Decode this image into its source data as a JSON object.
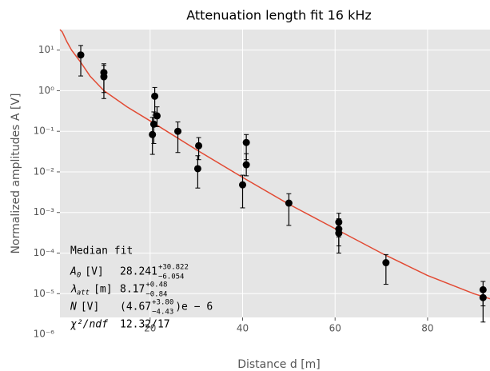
{
  "chart_data": {
    "type": "scatter",
    "title": "Attenuation length fit 16 kHz",
    "x_label": "Distance d [m]",
    "y_label": "Normalized amplitudes A [V]",
    "xlim": [
      0.5,
      93.5
    ],
    "xticks": [
      20,
      40,
      60,
      80
    ],
    "ylim": [
      2.6e-06,
      32
    ],
    "y_log": true,
    "grid": true,
    "yticks": [
      {
        "value": 1e-06,
        "label": "10⁻⁶"
      },
      {
        "value": 1e-05,
        "label": "10⁻⁵"
      },
      {
        "value": 0.0001,
        "label": "10⁻⁴"
      },
      {
        "value": 0.001,
        "label": "10⁻³"
      },
      {
        "value": 0.01,
        "label": "10⁻²"
      },
      {
        "value": 0.1,
        "label": "10⁻¹"
      },
      {
        "value": 1,
        "label": "10⁰"
      },
      {
        "value": 10,
        "label": "10¹"
      }
    ],
    "points": {
      "color": "#000000",
      "x": [
        5,
        10,
        10,
        20.5,
        20.8,
        21,
        21.5,
        26,
        30.5,
        30.3,
        40,
        40.8,
        40.8,
        50,
        60.8,
        60.8,
        60.8,
        71,
        92,
        92
      ],
      "values": [
        7.6,
        2.8,
        2.2,
        0.083,
        0.15,
        0.73,
        0.24,
        0.1,
        0.044,
        0.012,
        0.0048,
        0.053,
        0.015,
        0.0017,
        0.00058,
        0.00039,
        0.00031,
        5.8e-05,
        1.25e-05,
        8e-06
      ],
      "lower": [
        2.3,
        0.9,
        0.64,
        0.027,
        0.05,
        0.25,
        0.13,
        0.03,
        0.02,
        0.004,
        0.0013,
        0.02,
        0.008,
        0.00048,
        0.00025,
        0.00015,
        0.0001,
        1.7e-05,
        5e-06,
        2e-06
      ],
      "upper": [
        13,
        4.6,
        4.2,
        0.22,
        0.3,
        1.2,
        0.4,
        0.17,
        0.07,
        0.025,
        0.0083,
        0.083,
        0.028,
        0.0029,
        0.00096,
        0.0007,
        0.0005,
        9.2e-05,
        2e-05,
        1.3e-05
      ]
    },
    "fit": {
      "color": "#e24a33",
      "x": [
        0.5,
        1,
        2,
        3,
        5,
        7,
        10,
        15,
        20,
        30,
        40,
        50,
        60,
        70,
        80,
        90,
        93.5
      ],
      "values": [
        32,
        28,
        16,
        10,
        5,
        2.3,
        1.0,
        0.4,
        0.18,
        0.035,
        0.0073,
        0.0016,
        0.0004,
        0.0001,
        2.8e-05,
        1e-05,
        7.5e-06
      ]
    },
    "annotation": {
      "title": "Median fit",
      "rows": [
        {
          "label": "A",
          "label_sub": "0",
          "unit": "[V]",
          "value": "28.241",
          "upper": "+30.822",
          "lower": "−6.054"
        },
        {
          "label": "λ",
          "label_sub": "att",
          "unit": "[m]",
          "value": "8.17",
          "upper": "+0.48",
          "lower": "−0.84"
        },
        {
          "label": "N",
          "unit": "[V]",
          "value": "(4.67",
          "upper": "+3.80",
          "lower": "−4.43",
          "suffix": ")e − 6"
        },
        {
          "label": "χ²/ndf",
          "value": "12.32/17"
        }
      ]
    }
  }
}
